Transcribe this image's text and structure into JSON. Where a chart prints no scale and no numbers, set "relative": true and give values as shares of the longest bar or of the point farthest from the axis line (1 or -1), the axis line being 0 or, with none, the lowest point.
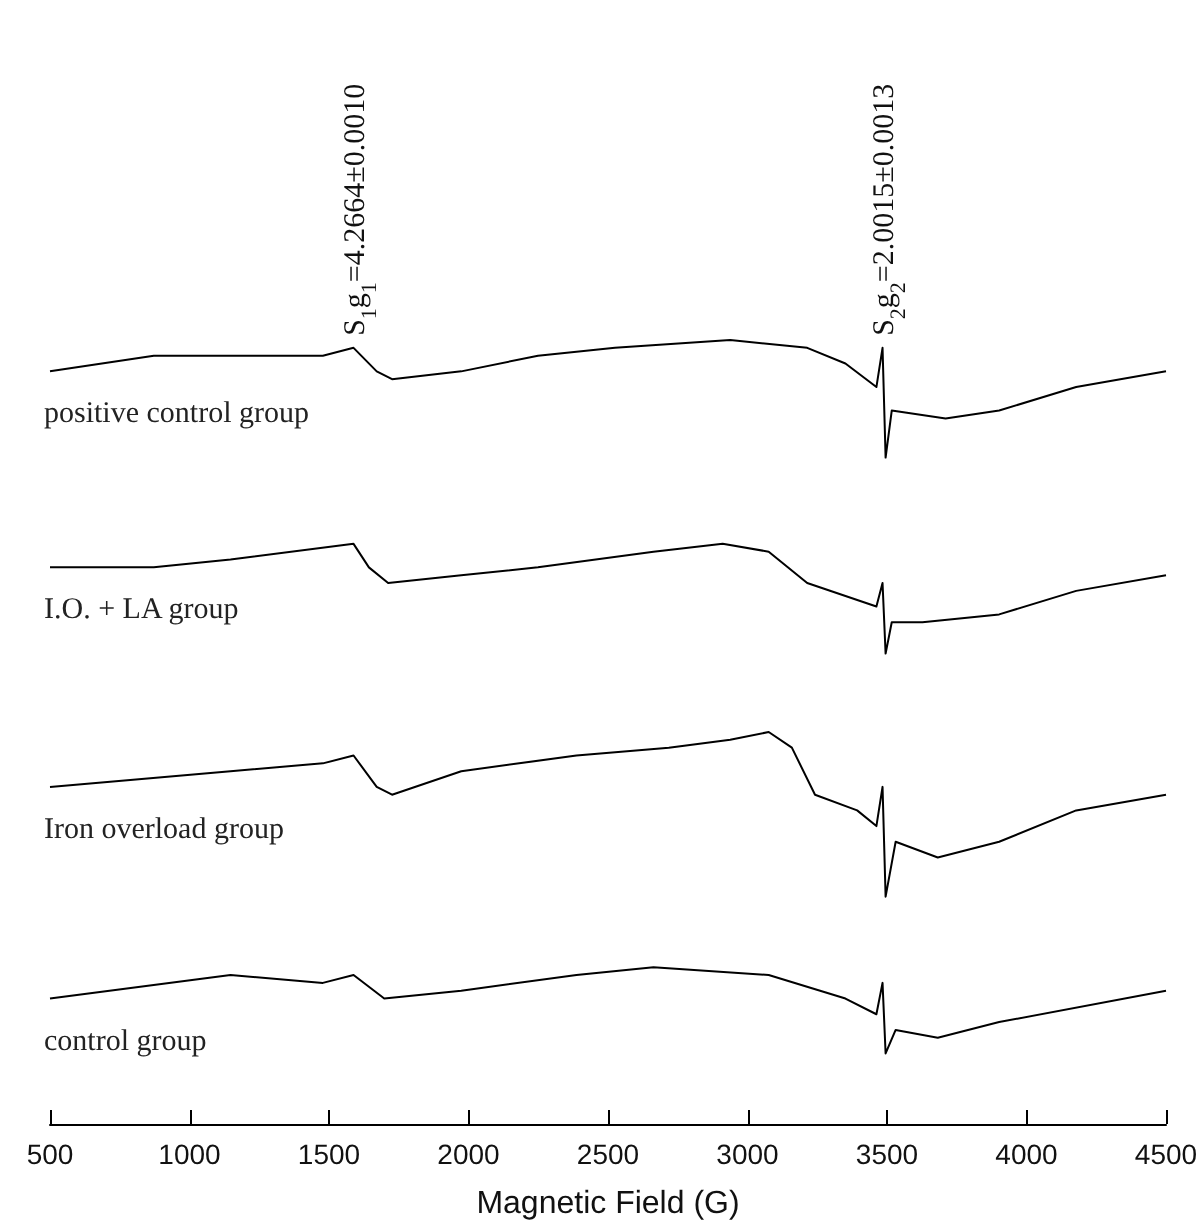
{
  "chart_data": {
    "type": "line",
    "relative": true,
    "xlabel": "Magnetic Field (G)",
    "xlim": [
      500,
      4500
    ],
    "xticks": [
      500,
      1000,
      1500,
      2000,
      2500,
      3000,
      3500,
      4000,
      4500
    ],
    "legend": false,
    "grid": false,
    "marker": "none",
    "line_style": "solid",
    "tick_labels": "x",
    "annotations": [
      {
        "text": "S$_{1}$g$_{1}$=4.2664±0.0010",
        "x": 1588,
        "y": 0.99
      },
      {
        "text": "S$_{2}$g$_{2}$=2.0015±0.0013",
        "x": 3484,
        "y": 0.99
      }
    ],
    "series": [
      {
        "name": "positive control group",
        "color": "#000000",
        "x": [
          500,
          872,
          1147,
          1478,
          1588,
          1671,
          1726,
          1974,
          2249,
          2525,
          2938,
          3214,
          3351,
          3462,
          3484,
          3495,
          3517,
          3710,
          3902,
          4178,
          4500
        ],
        "values": [
          0.96,
          0.98,
          0.98,
          0.98,
          0.99,
          0.96,
          0.95,
          0.96,
          0.98,
          0.99,
          1.0,
          0.99,
          0.97,
          0.94,
          0.99,
          0.85,
          0.91,
          0.9,
          0.91,
          0.94,
          0.96
        ]
      },
      {
        "name": "I.O. + LA group",
        "color": "#000000",
        "x": [
          500,
          872,
          1147,
          1588,
          1643,
          1712,
          1974,
          2249,
          2663,
          2911,
          3076,
          3214,
          3462,
          3484,
          3495,
          3517,
          3627,
          3902,
          4178,
          4500
        ],
        "values": [
          0.71,
          0.71,
          0.72,
          0.74,
          0.71,
          0.69,
          0.7,
          0.71,
          0.73,
          0.74,
          0.73,
          0.69,
          0.66,
          0.69,
          0.6,
          0.64,
          0.64,
          0.65,
          0.68,
          0.7
        ]
      },
      {
        "name": "Iron overload group",
        "color": "#000000",
        "x": [
          500,
          1147,
          1478,
          1588,
          1671,
          1726,
          1974,
          2387,
          2718,
          2938,
          3076,
          3159,
          3242,
          3393,
          3462,
          3484,
          3495,
          3531,
          3682,
          3902,
          4178,
          4500
        ],
        "values": [
          0.43,
          0.45,
          0.46,
          0.47,
          0.43,
          0.42,
          0.45,
          0.47,
          0.48,
          0.49,
          0.5,
          0.48,
          0.42,
          0.4,
          0.38,
          0.43,
          0.29,
          0.36,
          0.34,
          0.36,
          0.4,
          0.42
        ]
      },
      {
        "name": "control group",
        "color": "#000000",
        "x": [
          500,
          1147,
          1478,
          1588,
          1698,
          1974,
          2387,
          2663,
          3076,
          3351,
          3462,
          3484,
          3495,
          3531,
          3682,
          3902,
          4500
        ],
        "values": [
          0.16,
          0.19,
          0.18,
          0.19,
          0.16,
          0.17,
          0.19,
          0.2,
          0.19,
          0.16,
          0.14,
          0.18,
          0.09,
          0.12,
          0.11,
          0.13,
          0.17
        ]
      }
    ]
  }
}
